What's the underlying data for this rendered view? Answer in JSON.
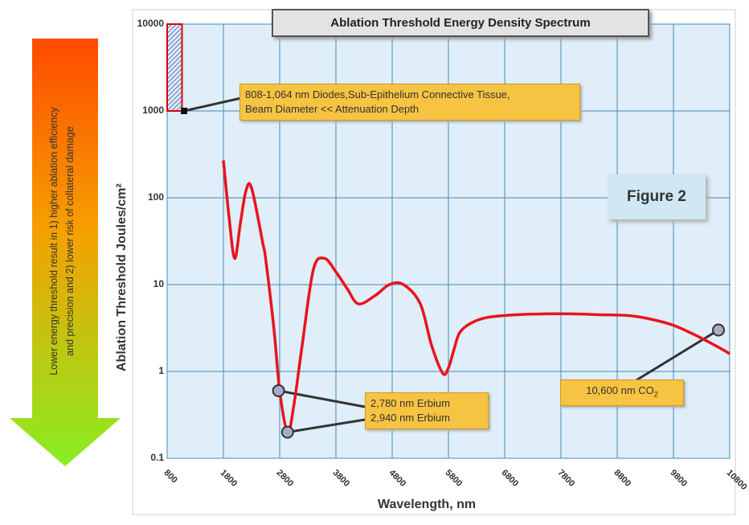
{
  "chart_data": {
    "type": "line",
    "title": "Ablation Threshold Energy Density Spectrum",
    "figure_label": "Figure 2",
    "xlabel": "Wavelength, nm",
    "ylabel": "Ablation Threshold Joules/cm²",
    "y_scale": "log",
    "ylim": [
      0.1,
      10000
    ],
    "xlim": [
      800,
      10800
    ],
    "grid": true,
    "x_ticks": [
      "800",
      "1800",
      "2800",
      "3800",
      "4800",
      "5800",
      "6800",
      "7800",
      "8800",
      "9800",
      "10800"
    ],
    "y_ticks": [
      "0.1",
      "1",
      "10",
      "100",
      "1000",
      "10000"
    ],
    "series": [
      {
        "name": "",
        "color": "#e8141e",
        "x": [
          1800,
          1900,
          2000,
          2100,
          2200,
          2300,
          2500,
          2550,
          2700,
          2800,
          2940,
          3050,
          3200,
          3400,
          3600,
          3800,
          4000,
          4200,
          4500,
          4750,
          5000,
          5300,
          5500,
          5700,
          5800,
          5900,
          6000,
          6200,
          6500,
          7000,
          7500,
          8000,
          8500,
          9000,
          9400,
          9800,
          10200,
          10600,
          11000
        ],
        "values": [
          270,
          60,
          20,
          50,
          120,
          130,
          30,
          20,
          3,
          0.6,
          0.2,
          0.4,
          2,
          15,
          20,
          14,
          9,
          6,
          7.5,
          10,
          10,
          6,
          2,
          0.95,
          1.1,
          1.8,
          2.8,
          3.6,
          4.2,
          4.5,
          4.6,
          4.6,
          4.5,
          4.4,
          4.0,
          3.4,
          2.6,
          1.9,
          1.6
        ]
      }
    ],
    "markers": [
      {
        "x": 1100,
        "y": 1000,
        "label": "808-1,064 nm Diodes,Sub-Epithelium Connective Tissue, Beam Diameter << Attenuation Depth"
      },
      {
        "x": 2780,
        "y": 0.6,
        "label": "2,780 nm Erbium"
      },
      {
        "x": 2940,
        "y": 0.2,
        "label": "2,940 nm Erbium"
      },
      {
        "x": 10600,
        "y": 3,
        "label": "10,600 nm CO2"
      }
    ],
    "band": {
      "x": [
        800,
        1064
      ],
      "y": [
        1000,
        10000
      ]
    }
  },
  "annotations": {
    "diode": "808-1,064 nm Diodes,Sub-Epithelium Connective Tissue,",
    "diode_line2": "Beam Diameter << Attenuation Depth",
    "erbium1": "2,780 nm Erbium",
    "erbium2": "2,940 nm Erbium",
    "co2_main": "10,600 nm CO",
    "co2_sub": "2"
  },
  "arrow_text": {
    "line1": "Lower energy threshold result in 1) higher ablation efficiency",
    "line2": "and precision and 2) lower risk of collateral damage"
  },
  "colors": {
    "plot_bg": "#dfeef8",
    "grid": "#4a88b8",
    "curve": "#e8141e",
    "arrow_top": "#ff4a00",
    "arrow_bottom": "#88ee22",
    "callout": "#f7c342"
  }
}
